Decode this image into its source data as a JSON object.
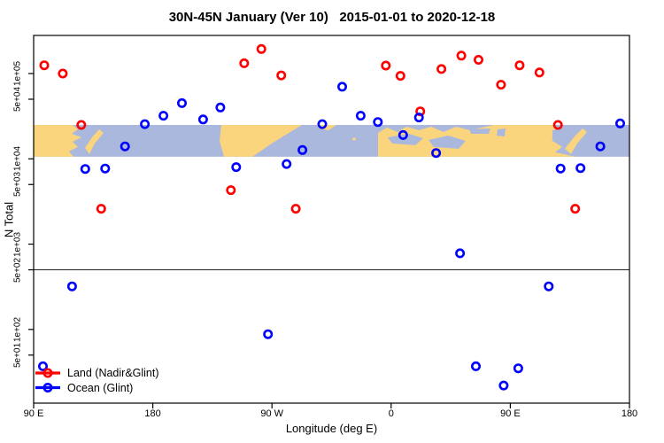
{
  "title": "30N-45N January (Ver 10)   2015-01-01 to 2020-12-18",
  "chart_data": {
    "type": "scatter",
    "title": "30N-45N January (Ver 10)   2015-01-01 to 2020-12-18",
    "xlabel": "Longitude (deg E)",
    "ylabel": "N Total",
    "x_axis": {
      "range_deg_east": [
        90,
        540
      ],
      "ticks": [
        {
          "lon": 90,
          "label": "90 E"
        },
        {
          "lon": 180,
          "label": "180"
        },
        {
          "lon": 270,
          "label": "90 W"
        },
        {
          "lon": 360,
          "label": "0"
        },
        {
          "lon": 450,
          "label": "90 E"
        },
        {
          "lon": 540,
          "label": "180"
        }
      ]
    },
    "y_axis": {
      "scale": "log",
      "range": [
        14,
        280000
      ],
      "ticks": [
        {
          "value": 100000,
          "label": "1e+05"
        },
        {
          "value": 50000,
          "label": "5e+04"
        },
        {
          "value": 10000,
          "label": "1e+04"
        },
        {
          "value": 5000,
          "label": "5e+03"
        },
        {
          "value": 1000,
          "label": "1e+03"
        },
        {
          "value": 500,
          "label": "5e+02"
        },
        {
          "value": 100,
          "label": "1e+02"
        },
        {
          "value": 50,
          "label": "5e+01"
        }
      ]
    },
    "reference_line": {
      "value": 500
    },
    "map_band": {
      "lat_range": "30N-45N",
      "land_color": "#FAD57E",
      "ocean_color": "#A9B8DC",
      "y_top_value": 25000,
      "y_bottom_value": 10600
    },
    "legend": {
      "position": "bottom-left"
    },
    "series": [
      {
        "name": "Land (Nadir&Glint)",
        "color": "#FF0000",
        "marker": "open-circle",
        "points": [
          [
            98,
            125000
          ],
          [
            112,
            100000
          ],
          [
            126,
            25000
          ],
          [
            141,
            2600
          ],
          [
            239,
            4300
          ],
          [
            249,
            132000
          ],
          [
            262,
            194000
          ],
          [
            277,
            95000
          ],
          [
            288,
            2600
          ],
          [
            356,
            124000
          ],
          [
            367,
            94000
          ],
          [
            382,
            36000
          ],
          [
            398,
            113000
          ],
          [
            413,
            162000
          ],
          [
            426,
            145000
          ],
          [
            443,
            74000
          ],
          [
            457,
            125000
          ],
          [
            472,
            103000
          ],
          [
            486,
            25000
          ],
          [
            499,
            2600
          ]
        ]
      },
      {
        "name": "Ocean (Glint)",
        "color": "#0000FF",
        "marker": "open-circle",
        "points": [
          [
            97,
            37
          ],
          [
            119,
            320
          ],
          [
            129,
            7600
          ],
          [
            144,
            7700
          ],
          [
            159,
            14000
          ],
          [
            174,
            25500
          ],
          [
            188,
            32000
          ],
          [
            202,
            45000
          ],
          [
            218,
            29000
          ],
          [
            231,
            40000
          ],
          [
            243,
            8000
          ],
          [
            267,
            88
          ],
          [
            281,
            8700
          ],
          [
            293,
            12700
          ],
          [
            308,
            25500
          ],
          [
            323,
            70000
          ],
          [
            337,
            32000
          ],
          [
            350,
            27000
          ],
          [
            369,
            19000
          ],
          [
            381,
            30500
          ],
          [
            394,
            11700
          ],
          [
            412,
            780
          ],
          [
            424,
            37
          ],
          [
            445,
            22
          ],
          [
            456,
            35
          ],
          [
            479,
            320
          ],
          [
            488,
            7700
          ],
          [
            503,
            7800
          ],
          [
            518,
            14000
          ],
          [
            533,
            26000
          ]
        ]
      }
    ]
  }
}
